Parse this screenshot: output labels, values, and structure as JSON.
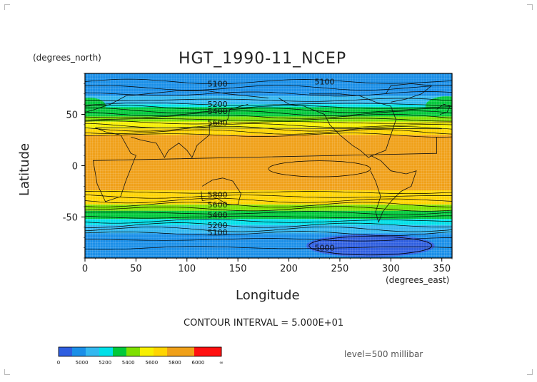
{
  "header": {
    "title": "HGT_1990-11_NCEP",
    "y_units": "(degrees_north)",
    "x_units": "(degrees_east)"
  },
  "footer": {
    "contour_interval": "CONTOUR INTERVAL = 5.000E+01",
    "level": "level=500 millibar"
  },
  "colors": {
    "band_4800": "#2e5ee0",
    "band_5000": "#1a8fe8",
    "band_5200": "#33b8f0",
    "band_5300": "#00e0e8",
    "band_5400": "#00c93a",
    "band_5600": "#7ee000",
    "band_5700": "#f7f000",
    "band_5800": "#ffd500",
    "band_6000": "#f0a018",
    "band_6200": "#ff1010"
  },
  "chart_data": {
    "type": "heatmap",
    "title": "HGT_1990-11_NCEP",
    "xlabel": "Longitude",
    "ylabel": "Latitude",
    "xlim": [
      0,
      360
    ],
    "ylim": [
      -90,
      90
    ],
    "x_ticks": [
      0,
      50,
      100,
      150,
      200,
      250,
      300,
      350
    ],
    "y_ticks": [
      -50,
      0,
      50
    ],
    "contour_labels": [
      {
        "text": "5100",
        "lon": 130,
        "lat": 80
      },
      {
        "text": "5100",
        "lon": 235,
        "lat": 82
      },
      {
        "text": "5200",
        "lon": 130,
        "lat": 60
      },
      {
        "text": "5400",
        "lon": 130,
        "lat": 53
      },
      {
        "text": "5600",
        "lon": 130,
        "lat": 42
      },
      {
        "text": "5800",
        "lon": 130,
        "lat": -28
      },
      {
        "text": "5600",
        "lon": 130,
        "lat": -38
      },
      {
        "text": "5400",
        "lon": 130,
        "lat": -48
      },
      {
        "text": "5200",
        "lon": 130,
        "lat": -58
      },
      {
        "text": "5100",
        "lon": 130,
        "lat": -65
      },
      {
        "text": "5000",
        "lon": 235,
        "lat": -80
      }
    ],
    "colorbar": {
      "labels": [
        "0",
        "5000",
        "5200",
        "5400",
        "5600",
        "5800",
        "6000",
        "∞"
      ]
    },
    "grid": true
  }
}
